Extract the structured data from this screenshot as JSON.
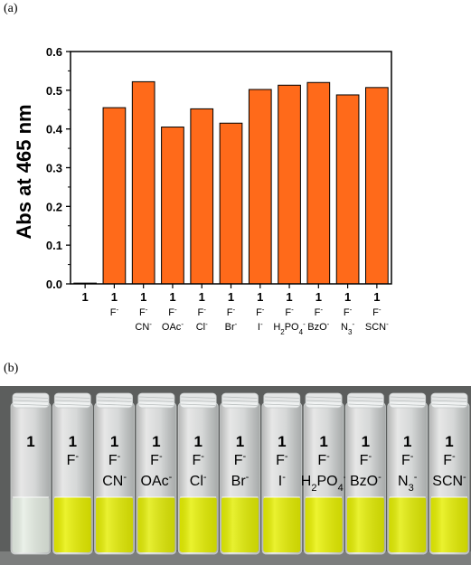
{
  "panels": {
    "a": "(a)",
    "b": "(b)"
  },
  "chart_data": {
    "type": "bar",
    "ylabel": "Abs at 465 nm",
    "ylim": [
      0.0,
      0.6
    ],
    "yticks": [
      "0.0",
      "0.1",
      "0.2",
      "0.3",
      "0.4",
      "0.5",
      "0.6"
    ],
    "bar_color": "#ff6a1a",
    "grid": false,
    "categories": [
      {
        "top": "1",
        "ion": "",
        "sub": ""
      },
      {
        "top": "1",
        "ion": "F",
        "sub": ""
      },
      {
        "top": "1",
        "ion": "F",
        "sub": "CN"
      },
      {
        "top": "1",
        "ion": "F",
        "sub": "OAc"
      },
      {
        "top": "1",
        "ion": "F",
        "sub": "Cl"
      },
      {
        "top": "1",
        "ion": "F",
        "sub": "Br"
      },
      {
        "top": "1",
        "ion": "F",
        "sub": "I"
      },
      {
        "top": "1",
        "ion": "F",
        "sub": "H2PO4"
      },
      {
        "top": "1",
        "ion": "F",
        "sub": "BzO"
      },
      {
        "top": "1",
        "ion": "F",
        "sub": "N3"
      },
      {
        "top": "1",
        "ion": "F",
        "sub": "SCN"
      }
    ],
    "values": [
      0.002,
      0.455,
      0.522,
      0.405,
      0.452,
      0.415,
      0.502,
      0.513,
      0.52,
      0.488,
      0.507
    ]
  },
  "photo": {
    "vials": [
      {
        "top": "1",
        "ion": "",
        "sub": "",
        "solution": "#e6eee4"
      },
      {
        "top": "1",
        "ion": "F",
        "sub": "",
        "solution": "#e8f000"
      },
      {
        "top": "1",
        "ion": "F",
        "sub": "CN",
        "solution": "#e5ee04"
      },
      {
        "top": "1",
        "ion": "F",
        "sub": "OAc",
        "solution": "#e2ec06"
      },
      {
        "top": "1",
        "ion": "F",
        "sub": "Cl",
        "solution": "#e6f002"
      },
      {
        "top": "1",
        "ion": "F",
        "sub": "Br",
        "solution": "#e3ee04"
      },
      {
        "top": "1",
        "ion": "F",
        "sub": "I",
        "solution": "#e6ef02"
      },
      {
        "top": "1",
        "ion": "F",
        "sub": "H2PO4",
        "solution": "#e9f202"
      },
      {
        "top": "1",
        "ion": "F",
        "sub": "BzO",
        "solution": "#e4ee03"
      },
      {
        "top": "1",
        "ion": "F",
        "sub": "N3",
        "solution": "#e3ed04"
      },
      {
        "top": "1",
        "ion": "F",
        "sub": "SCN",
        "solution": "#e6ef02"
      }
    ],
    "background": "#5c5e5d",
    "surface": "#7c7e7d"
  }
}
